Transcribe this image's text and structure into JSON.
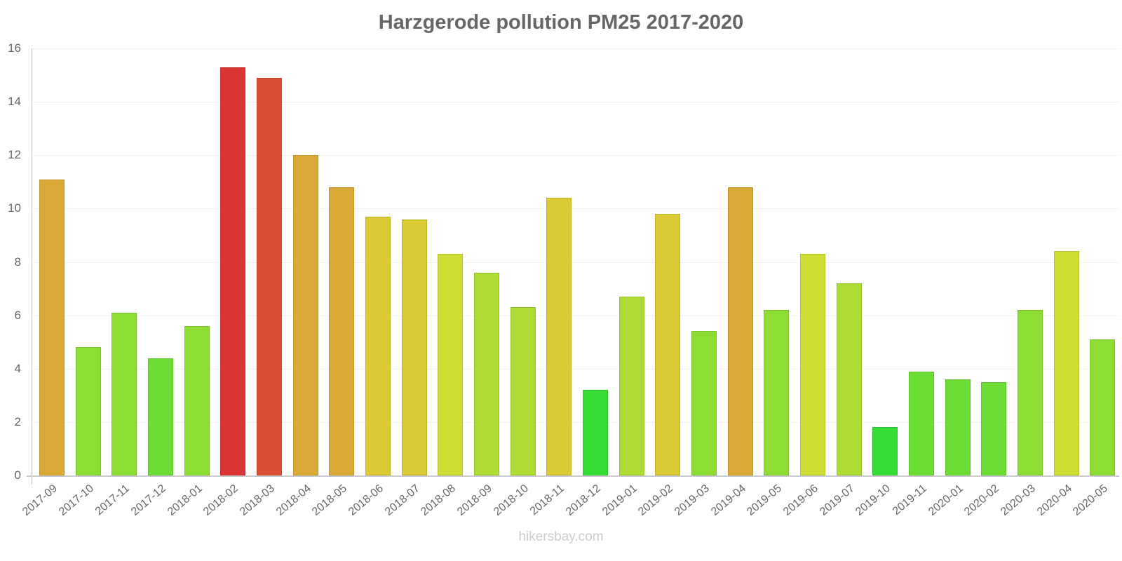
{
  "chart_data": {
    "type": "bar",
    "title": "Harzgerode pollution PM25 2017-2020",
    "xlabel": "",
    "ylabel": "",
    "ylim": [
      0,
      16
    ],
    "yticks": [
      0,
      2,
      4,
      6,
      8,
      10,
      12,
      14,
      16
    ],
    "grid": true,
    "legend": null,
    "categories": [
      "2017-09",
      "2017-10",
      "2017-11",
      "2017-12",
      "2018-01",
      "2018-02",
      "2018-03",
      "2018-04",
      "2018-05",
      "2018-06",
      "2018-07",
      "2018-08",
      "2018-09",
      "2018-10",
      "2018-11",
      "2018-12",
      "2019-01",
      "2019-02",
      "2019-03",
      "2019-04",
      "2019-05",
      "2019-06",
      "2019-07",
      "2019-10",
      "2019-11",
      "2020-01",
      "2020-02",
      "2020-03",
      "2020-04",
      "2020-05"
    ],
    "values": [
      11.1,
      4.8,
      6.1,
      4.4,
      5.6,
      15.3,
      14.9,
      12.0,
      10.8,
      9.7,
      9.6,
      8.3,
      7.6,
      6.3,
      10.4,
      3.2,
      6.7,
      9.8,
      5.4,
      10.8,
      6.2,
      8.3,
      7.2,
      1.8,
      3.9,
      3.6,
      3.5,
      6.2,
      8.4,
      5.1
    ],
    "colors": [
      "#dba935",
      "#8ddd35",
      "#8ddd35",
      "#6cdd35",
      "#8ddd35",
      "#db3535",
      "#db5035",
      "#dba935",
      "#dba935",
      "#dbc935",
      "#dbc935",
      "#cfdd35",
      "#addd35",
      "#addd35",
      "#dbc935",
      "#35dd35",
      "#addd35",
      "#dbc935",
      "#8ddd35",
      "#dba935",
      "#8ddd35",
      "#cfdd35",
      "#addd35",
      "#35dd35",
      "#6cdd35",
      "#6cdd35",
      "#6cdd35",
      "#8ddd35",
      "#cfdd35",
      "#8ddd35"
    ]
  },
  "watermark": "hikersbay.com"
}
